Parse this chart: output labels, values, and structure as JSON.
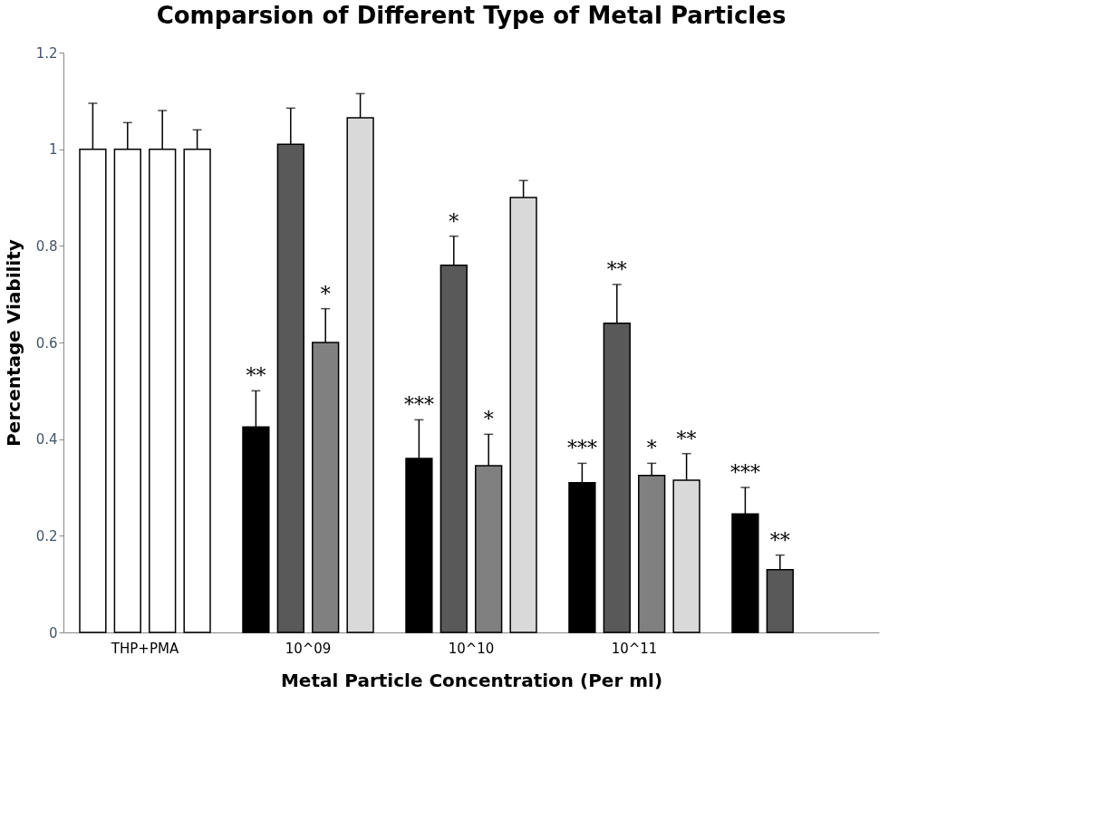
{
  "chart_data": {
    "type": "bar",
    "title": "Comparsion of Different Type of Metal Particles",
    "xlabel": "Metal Particle Concentration (Per ml)",
    "ylabel": "Percentage Viability",
    "categories": [
      "THP+PMA",
      "10^09",
      "10^10",
      "10^11",
      null
    ],
    "series": [
      {
        "colors": [
          "#ffffff",
          "#000000",
          "#000000",
          "#000000",
          "#000000"
        ],
        "values": [
          1.0,
          0.425,
          0.36,
          0.31,
          0.245
        ],
        "errors": [
          0.095,
          0.075,
          0.08,
          0.04,
          0.055
        ],
        "value_labels": [
          null,
          "**",
          "***",
          "***",
          "***"
        ]
      },
      {
        "colors": [
          "#ffffff",
          "#595959",
          "#595959",
          "#595959",
          "#595959"
        ],
        "values": [
          1.0,
          1.01,
          0.76,
          0.64,
          0.13
        ],
        "errors": [
          0.055,
          0.075,
          0.06,
          0.08,
          0.03
        ],
        "value_labels": [
          null,
          null,
          "*",
          "**",
          "**"
        ]
      },
      {
        "colors": [
          "#ffffff",
          "#808080",
          "#808080",
          "#808080",
          "#808080"
        ],
        "values": [
          1.0,
          0.6,
          0.345,
          0.325,
          null
        ],
        "errors": [
          0.08,
          0.07,
          0.065,
          0.025,
          null
        ],
        "value_labels": [
          null,
          "*",
          "*",
          "*",
          null
        ]
      },
      {
        "colors": [
          "#ffffff",
          "#d9d9d9",
          "#d9d9d9",
          "#d9d9d9",
          "#d9d9d9"
        ],
        "values": [
          1.0,
          1.065,
          0.9,
          0.315,
          null
        ],
        "errors": [
          0.04,
          0.05,
          0.035,
          0.055,
          null
        ],
        "value_labels": [
          null,
          null,
          null,
          "**",
          null
        ]
      }
    ],
    "ylim": [
      0,
      1.2
    ],
    "yticks": [
      0,
      0.2,
      0.4,
      0.6,
      0.8,
      1,
      1.2
    ],
    "grid": false
  }
}
